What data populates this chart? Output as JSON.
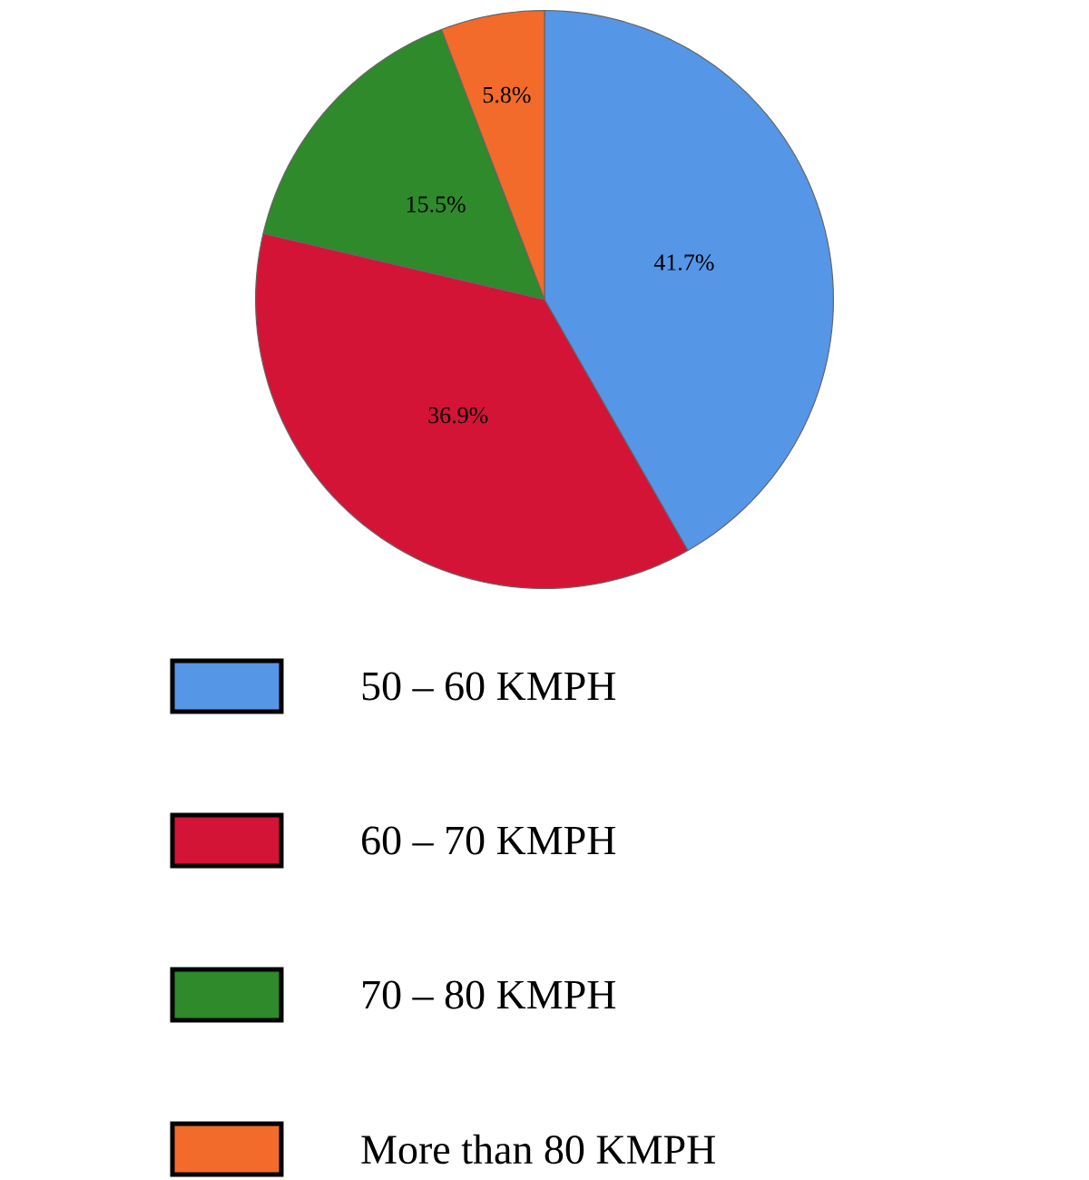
{
  "chart_data": {
    "type": "pie",
    "categories": [
      "50 – 60 KMPH",
      "60 – 70 KMPH",
      "70 – 80 KMPH",
      "More than 80 KMPH"
    ],
    "values": [
      41.7,
      36.9,
      15.5,
      5.8
    ],
    "colors": [
      "#5596e6",
      "#d41436",
      "#2e8a2a",
      "#f26b2a"
    ],
    "value_labels": [
      "41.7%",
      "36.9%",
      "15.5%",
      "5.8%"
    ],
    "legend": "bottom"
  }
}
